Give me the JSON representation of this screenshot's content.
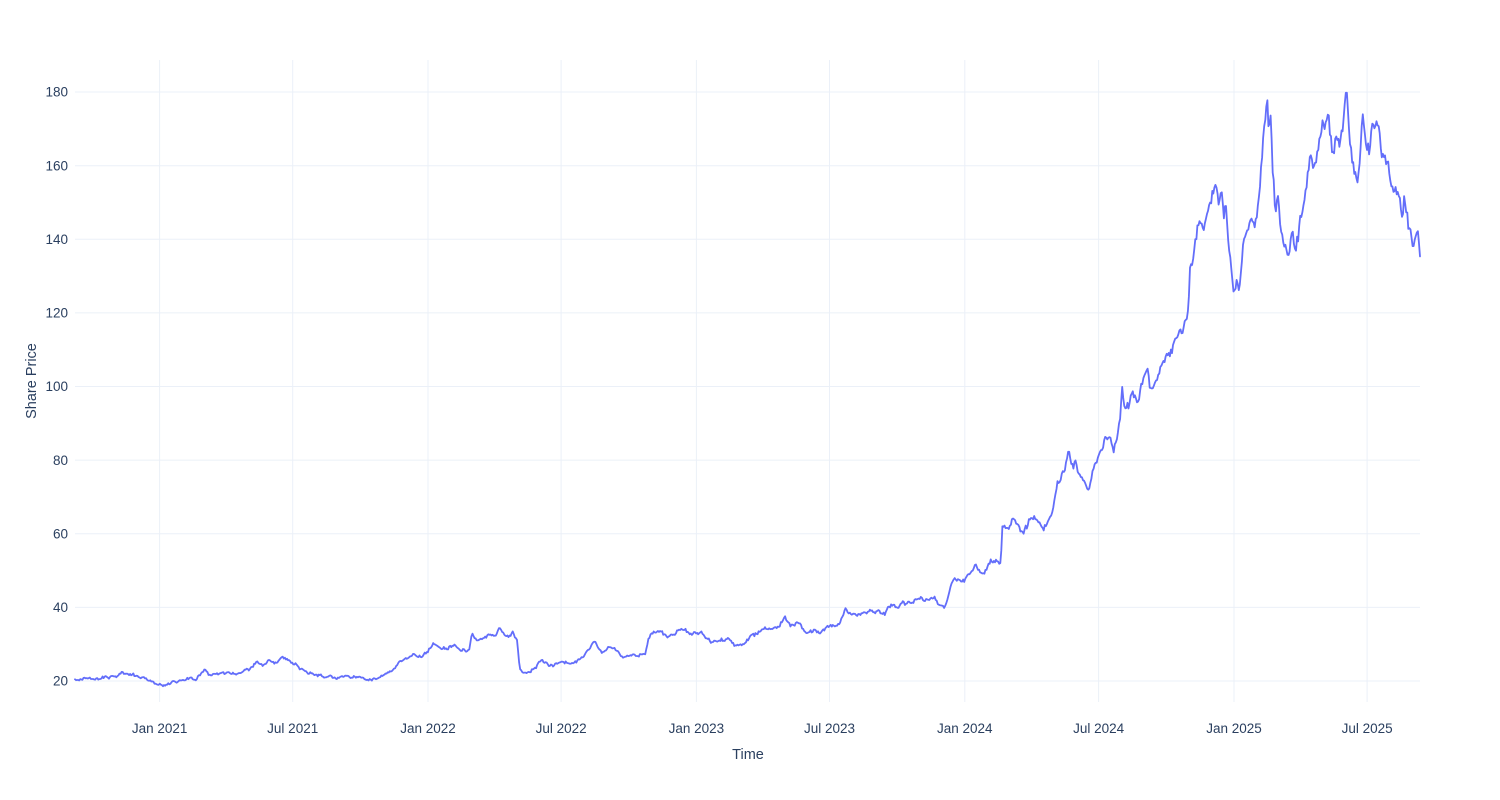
{
  "chart_data": {
    "type": "line",
    "title": "",
    "xlabel": "Time",
    "ylabel": "Share Price",
    "legend": "none",
    "grid": true,
    "background_color": "#ffffff",
    "grid_color": "#ebf0f8",
    "text_color": "#2a3f5f",
    "x_range": [
      "2020-09-08",
      "2025-09-11"
    ],
    "y_axis": {
      "range": [
        14.3,
        188.7
      ],
      "ticks": [
        20,
        40,
        60,
        80,
        100,
        120,
        140,
        160,
        180
      ]
    },
    "x_ticks": [
      {
        "date": "2021-01-01",
        "label": "Jan 2021"
      },
      {
        "date": "2021-07-01",
        "label": "Jul 2021"
      },
      {
        "date": "2022-01-01",
        "label": "Jan 2022"
      },
      {
        "date": "2022-07-01",
        "label": "Jul 2022"
      },
      {
        "date": "2023-01-01",
        "label": "Jan 2023"
      },
      {
        "date": "2023-07-01",
        "label": "Jul 2023"
      },
      {
        "date": "2024-01-01",
        "label": "Jan 2024"
      },
      {
        "date": "2024-07-01",
        "label": "Jul 2024"
      },
      {
        "date": "2025-01-01",
        "label": "Jan 2025"
      },
      {
        "date": "2025-07-01",
        "label": "Jul 2025"
      }
    ],
    "series": [
      {
        "name": "Share Price",
        "color": "#636efa",
        "points": [
          [
            "2020-09-08",
            20.4
          ],
          [
            "2020-09-20",
            20.6
          ],
          [
            "2020-10-05",
            20.3
          ],
          [
            "2020-10-20",
            20.9
          ],
          [
            "2020-11-01",
            21.2
          ],
          [
            "2020-11-10",
            22.3
          ],
          [
            "2020-11-20",
            21.6
          ],
          [
            "2020-11-28",
            21.5
          ],
          [
            "2020-12-10",
            20.8
          ],
          [
            "2020-12-22",
            19.9
          ],
          [
            "2021-01-05",
            18.7
          ],
          [
            "2021-01-14",
            19.4
          ],
          [
            "2021-01-21",
            20.2
          ],
          [
            "2021-02-01",
            20.3
          ],
          [
            "2021-02-11",
            20.6
          ],
          [
            "2021-02-20",
            20.4
          ],
          [
            "2021-03-04",
            23.3
          ],
          [
            "2021-03-10",
            21.7
          ],
          [
            "2021-03-20",
            21.9
          ],
          [
            "2021-04-01",
            22.1
          ],
          [
            "2021-04-15",
            22.0
          ],
          [
            "2021-04-24",
            22.6
          ],
          [
            "2021-05-05",
            23.2
          ],
          [
            "2021-05-13",
            24.8
          ],
          [
            "2021-05-22",
            24.3
          ],
          [
            "2021-05-30",
            25.2
          ],
          [
            "2021-06-08",
            24.6
          ],
          [
            "2021-06-17",
            26.3
          ],
          [
            "2021-06-25",
            25.4
          ],
          [
            "2021-07-03",
            24.4
          ],
          [
            "2021-07-10",
            23.8
          ],
          [
            "2021-07-20",
            22.6
          ],
          [
            "2021-08-04",
            22.0
          ],
          [
            "2021-08-15",
            21.3
          ],
          [
            "2021-08-29",
            20.9
          ],
          [
            "2021-09-10",
            21.4
          ],
          [
            "2021-09-27",
            21.2
          ],
          [
            "2021-10-08",
            20.6
          ],
          [
            "2021-10-23",
            20.4
          ],
          [
            "2021-11-05",
            21.8
          ],
          [
            "2021-11-15",
            23.2
          ],
          [
            "2021-11-23",
            25.3
          ],
          [
            "2021-12-05",
            26.2
          ],
          [
            "2021-12-13",
            26.9
          ],
          [
            "2021-12-22",
            26.6
          ],
          [
            "2022-01-01",
            27.8
          ],
          [
            "2022-01-09",
            30.4
          ],
          [
            "2022-01-19",
            28.4
          ],
          [
            "2022-01-28",
            29.0
          ],
          [
            "2022-02-05",
            29.6
          ],
          [
            "2022-02-15",
            27.9
          ],
          [
            "2022-02-26",
            28.5
          ],
          [
            "2022-03-02",
            33.4
          ],
          [
            "2022-03-09",
            30.8
          ],
          [
            "2022-03-18",
            31.6
          ],
          [
            "2022-03-25",
            32.4
          ],
          [
            "2022-04-02",
            33.2
          ],
          [
            "2022-04-08",
            34.6
          ],
          [
            "2022-04-15",
            33.0
          ],
          [
            "2022-04-22",
            32.6
          ],
          [
            "2022-04-27",
            33.2
          ],
          [
            "2022-05-02",
            31.4
          ],
          [
            "2022-05-06",
            22.9
          ],
          [
            "2022-05-16",
            21.9
          ],
          [
            "2022-05-25",
            23.4
          ],
          [
            "2022-06-04",
            25.9
          ],
          [
            "2022-06-10",
            25.3
          ],
          [
            "2022-06-17",
            24.2
          ],
          [
            "2022-06-26",
            24.8
          ],
          [
            "2022-07-05",
            25.1
          ],
          [
            "2022-07-15",
            25.0
          ],
          [
            "2022-07-25",
            25.6
          ],
          [
            "2022-08-03",
            27.3
          ],
          [
            "2022-08-15",
            30.8
          ],
          [
            "2022-08-26",
            28.4
          ],
          [
            "2022-09-07",
            29.3
          ],
          [
            "2022-09-15",
            28.6
          ],
          [
            "2022-09-24",
            27.1
          ],
          [
            "2022-10-05",
            27.3
          ],
          [
            "2022-10-15",
            27.7
          ],
          [
            "2022-10-24",
            28.0
          ],
          [
            "2022-10-28",
            32.3
          ],
          [
            "2022-11-11",
            33.6
          ],
          [
            "2022-11-22",
            32.3
          ],
          [
            "2022-12-06",
            33.8
          ],
          [
            "2022-12-19",
            32.9
          ],
          [
            "2023-01-01",
            33.6
          ],
          [
            "2023-01-08",
            33.9
          ],
          [
            "2023-01-20",
            30.9
          ],
          [
            "2023-02-01",
            31.5
          ],
          [
            "2023-02-10",
            31.9
          ],
          [
            "2023-02-24",
            30.0
          ],
          [
            "2023-03-10",
            31.3
          ],
          [
            "2023-03-20",
            32.8
          ],
          [
            "2023-03-29",
            34.4
          ],
          [
            "2023-04-08",
            34.0
          ],
          [
            "2023-04-15",
            33.8
          ],
          [
            "2023-04-24",
            35.0
          ],
          [
            "2023-04-30",
            37.2
          ],
          [
            "2023-05-10",
            35.3
          ],
          [
            "2023-05-19",
            35.9
          ],
          [
            "2023-05-30",
            33.3
          ],
          [
            "2023-06-09",
            34.4
          ],
          [
            "2023-06-16",
            33.1
          ],
          [
            "2023-06-24",
            33.9
          ],
          [
            "2023-07-01",
            34.7
          ],
          [
            "2023-07-13",
            35.8
          ],
          [
            "2023-07-23",
            39.7
          ],
          [
            "2023-08-02",
            37.3
          ],
          [
            "2023-08-13",
            38.3
          ],
          [
            "2023-08-25",
            39.1
          ],
          [
            "2023-09-05",
            38.7
          ],
          [
            "2023-09-10",
            37.9
          ],
          [
            "2023-09-25",
            41.1
          ],
          [
            "2023-10-02",
            39.7
          ],
          [
            "2023-10-16",
            40.9
          ],
          [
            "2023-10-29",
            42.7
          ],
          [
            "2023-11-12",
            41.7
          ],
          [
            "2023-11-21",
            42.5
          ],
          [
            "2023-11-29",
            40.3
          ],
          [
            "2023-12-05",
            40.0
          ],
          [
            "2023-12-10",
            43.6
          ],
          [
            "2023-12-16",
            47.7
          ],
          [
            "2023-12-27",
            48.3
          ],
          [
            "2024-01-15",
            50.8
          ],
          [
            "2024-01-26",
            49.1
          ],
          [
            "2024-02-11",
            52.6
          ],
          [
            "2024-02-16",
            51.2
          ],
          [
            "2024-02-19",
            51.6
          ],
          [
            "2024-02-21",
            61.0
          ],
          [
            "2024-03-02",
            63.4
          ],
          [
            "2024-03-08",
            64.9
          ],
          [
            "2024-03-13",
            63.3
          ],
          [
            "2024-03-20",
            60.5
          ],
          [
            "2024-03-29",
            63.5
          ],
          [
            "2024-04-09",
            64.6
          ],
          [
            "2024-04-17",
            61.7
          ],
          [
            "2024-04-25",
            65.9
          ],
          [
            "2024-05-01",
            67.0
          ],
          [
            "2024-05-04",
            72.4
          ],
          [
            "2024-05-10",
            74.6
          ],
          [
            "2024-05-17",
            76.5
          ],
          [
            "2024-05-21",
            82.8
          ],
          [
            "2024-05-24",
            78.7
          ],
          [
            "2024-05-31",
            79.2
          ],
          [
            "2024-06-09",
            74.2
          ],
          [
            "2024-06-16",
            72.4
          ],
          [
            "2024-06-25",
            78.0
          ],
          [
            "2024-07-02",
            81.0
          ],
          [
            "2024-07-08",
            84.0
          ],
          [
            "2024-07-15",
            85.5
          ],
          [
            "2024-07-22",
            84.0
          ],
          [
            "2024-07-30",
            90.0
          ],
          [
            "2024-08-02",
            100.8
          ],
          [
            "2024-08-06",
            93.6
          ],
          [
            "2024-08-15",
            96.2
          ],
          [
            "2024-08-22",
            94.0
          ],
          [
            "2024-08-30",
            101.0
          ],
          [
            "2024-09-05",
            104.0
          ],
          [
            "2024-09-11",
            98.6
          ],
          [
            "2024-09-21",
            104.5
          ],
          [
            "2024-09-28",
            106.5
          ],
          [
            "2024-10-09",
            109.5
          ],
          [
            "2024-10-15",
            111.0
          ],
          [
            "2024-10-22",
            113.5
          ],
          [
            "2024-10-28",
            118.0
          ],
          [
            "2024-10-31",
            121.0
          ],
          [
            "2024-11-02",
            132.0
          ],
          [
            "2024-11-07",
            134.8
          ],
          [
            "2024-11-14",
            146.0
          ],
          [
            "2024-11-21",
            141.0
          ],
          [
            "2024-11-29",
            151.0
          ],
          [
            "2024-12-06",
            155.3
          ],
          [
            "2024-12-11",
            152.3
          ],
          [
            "2024-12-15",
            154.5
          ],
          [
            "2024-12-18",
            146.2
          ],
          [
            "2024-12-21",
            150.4
          ],
          [
            "2024-12-27",
            138.0
          ],
          [
            "2025-01-01",
            127.6
          ],
          [
            "2025-01-05",
            130.0
          ],
          [
            "2025-01-08",
            127.3
          ],
          [
            "2025-01-15",
            138.0
          ],
          [
            "2025-01-22",
            140.0
          ],
          [
            "2025-01-27",
            141.5
          ],
          [
            "2025-02-03",
            149.0
          ],
          [
            "2025-02-08",
            158.0
          ],
          [
            "2025-02-12",
            170.0
          ],
          [
            "2025-02-15",
            178.0
          ],
          [
            "2025-02-18",
            167.0
          ],
          [
            "2025-02-19",
            176.5
          ],
          [
            "2025-02-23",
            155.0
          ],
          [
            "2025-02-27",
            146.0
          ],
          [
            "2025-03-02",
            152.0
          ],
          [
            "2025-03-10",
            136.5
          ],
          [
            "2025-03-15",
            134.5
          ],
          [
            "2025-03-21",
            142.0
          ],
          [
            "2025-03-26",
            136.0
          ],
          [
            "2025-04-02",
            146.0
          ],
          [
            "2025-04-09",
            152.0
          ],
          [
            "2025-04-14",
            160.0
          ],
          [
            "2025-04-18",
            156.5
          ],
          [
            "2025-04-24",
            163.0
          ],
          [
            "2025-05-01",
            172.5
          ],
          [
            "2025-05-05",
            169.0
          ],
          [
            "2025-05-09",
            173.5
          ],
          [
            "2025-05-14",
            161.0
          ],
          [
            "2025-05-18",
            166.0
          ],
          [
            "2025-05-21",
            170.0
          ],
          [
            "2025-05-25",
            164.5
          ],
          [
            "2025-05-30",
            171.0
          ],
          [
            "2025-06-02",
            179.5
          ],
          [
            "2025-06-06",
            170.0
          ],
          [
            "2025-06-11",
            160.5
          ],
          [
            "2025-06-17",
            156.0
          ],
          [
            "2025-06-21",
            162.0
          ],
          [
            "2025-06-25",
            174.5
          ],
          [
            "2025-07-01",
            165.0
          ],
          [
            "2025-07-04",
            162.0
          ],
          [
            "2025-07-09",
            166.5
          ],
          [
            "2025-07-15",
            170.0
          ],
          [
            "2025-07-20",
            163.5
          ],
          [
            "2025-07-26",
            161.5
          ],
          [
            "2025-07-30",
            159.5
          ],
          [
            "2025-08-03",
            154.5
          ],
          [
            "2025-08-08",
            153.5
          ],
          [
            "2025-08-12",
            149.5
          ],
          [
            "2025-08-18",
            145.5
          ],
          [
            "2025-08-20",
            150.5
          ],
          [
            "2025-08-24",
            146.0
          ],
          [
            "2025-08-28",
            140.5
          ],
          [
            "2025-09-03",
            139.0
          ],
          [
            "2025-09-07",
            140.0
          ],
          [
            "2025-09-11",
            134.3
          ]
        ]
      }
    ]
  }
}
